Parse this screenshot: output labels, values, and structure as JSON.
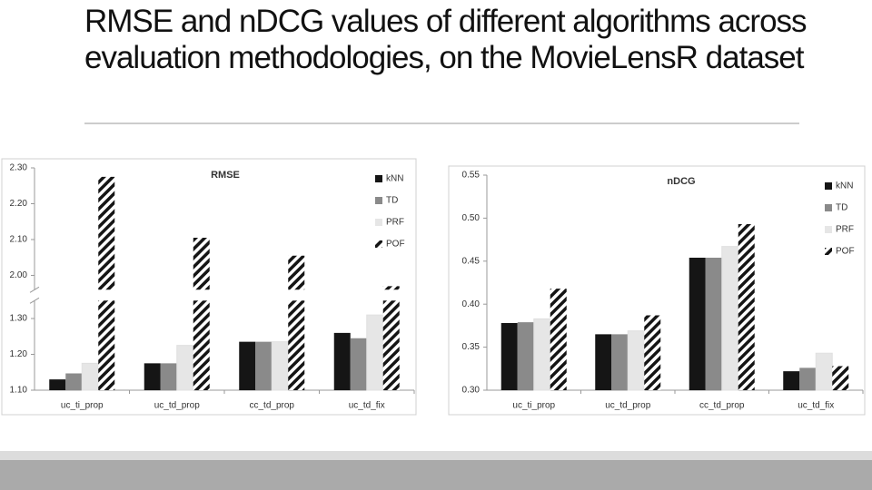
{
  "title": "RMSE and nDCG values of different algorithms across evaluation methodologies, on the MovieLensR dataset",
  "chart_data": [
    {
      "type": "bar",
      "title": "RMSE",
      "categories": [
        "uc_ti_prop",
        "uc_td_prop",
        "cc_td_prop",
        "uc_td_fix"
      ],
      "series": [
        {
          "name": "kNN",
          "color": "#151515",
          "values": [
            1.13,
            1.175,
            1.235,
            1.26
          ]
        },
        {
          "name": "TD",
          "color": "#8a8a8a",
          "values": [
            1.147,
            1.175,
            1.235,
            1.245
          ]
        },
        {
          "name": "PRF",
          "color": "#e6e6e6",
          "values": [
            1.175,
            1.225,
            1.235,
            1.31
          ]
        },
        {
          "name": "POF",
          "color": "#151515",
          "pattern": "hatch",
          "values": [
            2.275,
            2.105,
            2.055,
            1.97
          ]
        }
      ],
      "ylim": [
        1.1,
        2.3
      ],
      "ybreak": [
        1.35,
        1.96
      ],
      "yticks": [
        {
          "value": 1.1,
          "label": "1.10"
        },
        {
          "value": 1.2,
          "label": "1.20"
        },
        {
          "value": 1.3,
          "label": "1.30"
        },
        {
          "value": 2,
          "label": "2.00"
        },
        {
          "value": 2.1,
          "label": "2.10"
        },
        {
          "value": 2.2,
          "label": "2.20"
        },
        {
          "value": 2.3,
          "label": "2.30"
        }
      ],
      "legend": "right"
    },
    {
      "type": "bar",
      "title": "nDCG",
      "categories": [
        "uc_ti_prop",
        "uc_td_prop",
        "cc_td_prop",
        "uc_td_fix"
      ],
      "series": [
        {
          "name": "kNN",
          "color": "#151515",
          "values": [
            0.378,
            0.365,
            0.454,
            0.322
          ]
        },
        {
          "name": "TD",
          "color": "#8a8a8a",
          "values": [
            0.379,
            0.365,
            0.454,
            0.326
          ]
        },
        {
          "name": "PRF",
          "color": "#e6e6e6",
          "values": [
            0.383,
            0.369,
            0.467,
            0.343
          ]
        },
        {
          "name": "POF",
          "color": "#151515",
          "pattern": "hatch",
          "values": [
            0.418,
            0.387,
            0.493,
            0.328
          ]
        }
      ],
      "ylim": [
        0.3,
        0.55
      ],
      "yticks": [
        {
          "value": 0.3,
          "label": "0.30"
        },
        {
          "value": 0.35,
          "label": "0.35"
        },
        {
          "value": 0.4,
          "label": "0.40"
        },
        {
          "value": 0.45,
          "label": "0.45"
        },
        {
          "value": 0.5,
          "label": "0.50"
        },
        {
          "value": 0.55,
          "label": "0.55"
        }
      ],
      "legend": "right"
    }
  ]
}
